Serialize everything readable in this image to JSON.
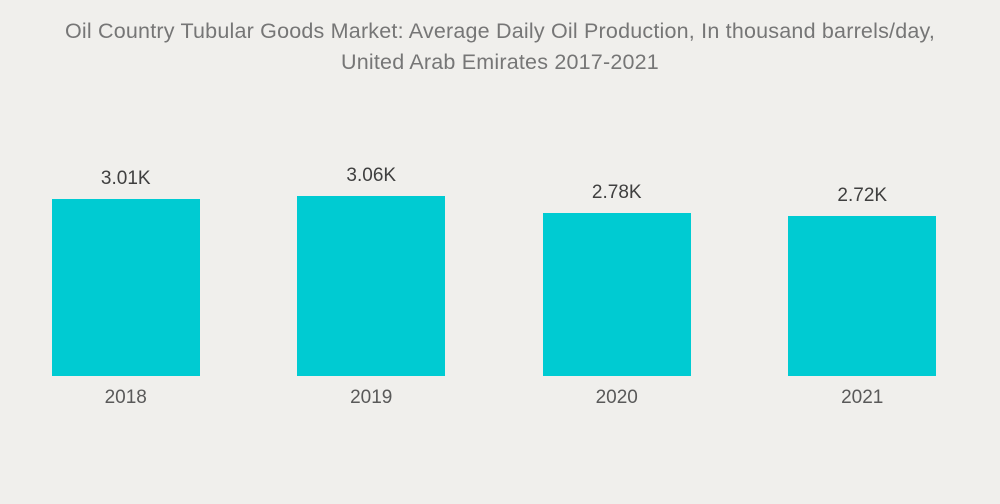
{
  "header": {
    "title": "Oil Country Tubular Goods Market: Average Daily Oil Production, In thousand barrels/day, United Arab Emirates 2017-2021",
    "title_lines": [
      "Oil Country Tubular Goods Market: Average Daily Oil Production, In thousand barrels/day,",
      "United Arab Emirates 2017-2021"
    ]
  },
  "colors": {
    "bar": "#00CBD2",
    "background": "#F0EFEC",
    "title_text": "#767676",
    "value_text": "#3F3F3F",
    "year_text": "#595959"
  },
  "chart_data": {
    "type": "bar",
    "title": "Oil Country Tubular Goods Market: Average Daily Oil Production, In thousand barrels/day, United Arab Emirates 2017-2021",
    "categories": [
      "2018",
      "2019",
      "2020",
      "2021"
    ],
    "values": [
      3.01,
      3.06,
      2.78,
      2.72
    ],
    "value_labels": [
      "3.01K",
      "3.06K",
      "2.78K",
      "2.72K"
    ],
    "unit": "thousand barrels per day",
    "xlabel": "",
    "ylabel": "",
    "ylim": [
      0,
      3.06
    ],
    "grid": false,
    "axes_visible": false,
    "legend": "none",
    "bar_color": "#00CBD2"
  }
}
